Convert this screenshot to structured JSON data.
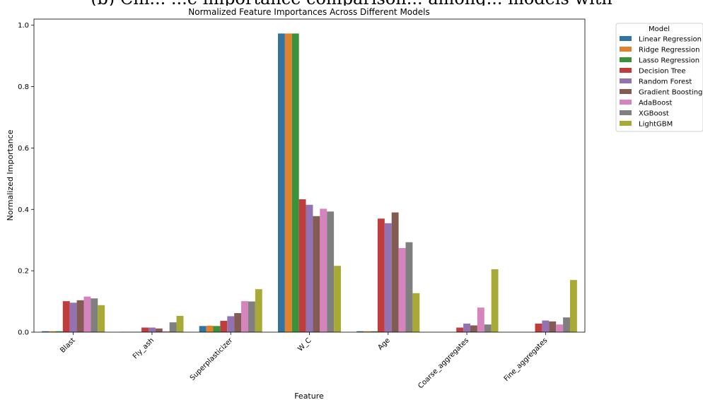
{
  "page_header": "(b) Chi...             ...e importance comparison... among... models with",
  "chart_data": {
    "type": "bar",
    "title": "Normalized Feature Importances Across Different Models",
    "xlabel": "Feature",
    "ylabel": "Normalized Importance",
    "ylim": [
      0,
      1.02
    ],
    "yticks": [
      "0.0",
      "0.2",
      "0.4",
      "0.6",
      "0.8",
      "1.0"
    ],
    "categories": [
      "Blast",
      "Fly_ash",
      "Superplasticizer",
      "W_C",
      "Age",
      "Coarse_aggregates",
      "Fine_aggregates"
    ],
    "legend_title": "Model",
    "legend_position": "outside-top-right",
    "grid": false,
    "series": [
      {
        "name": "Linear Regression",
        "color": "#3274a1",
        "values": [
          0.003,
          0.001,
          0.02,
          0.973,
          0.003,
          0.0,
          0.0
        ]
      },
      {
        "name": "Ridge Regression",
        "color": "#e1812c",
        "values": [
          0.003,
          0.001,
          0.021,
          0.973,
          0.003,
          0.0,
          0.0
        ]
      },
      {
        "name": "Lasso Regression",
        "color": "#3a923a",
        "values": [
          0.003,
          0.001,
          0.02,
          0.973,
          0.003,
          0.0,
          0.0
        ]
      },
      {
        "name": "Decision Tree",
        "color": "#c03d3e",
        "values": [
          0.101,
          0.015,
          0.037,
          0.433,
          0.37,
          0.015,
          0.028
        ]
      },
      {
        "name": "Random Forest",
        "color": "#9372b2",
        "values": [
          0.096,
          0.015,
          0.052,
          0.415,
          0.355,
          0.028,
          0.038
        ]
      },
      {
        "name": "Gradient Boosting",
        "color": "#845b53",
        "values": [
          0.104,
          0.012,
          0.062,
          0.378,
          0.39,
          0.022,
          0.035
        ]
      },
      {
        "name": "AdaBoost",
        "color": "#d684bd",
        "values": [
          0.116,
          0.003,
          0.101,
          0.402,
          0.274,
          0.08,
          0.025
        ]
      },
      {
        "name": "XGBoost",
        "color": "#7f7f7f",
        "values": [
          0.11,
          0.032,
          0.1,
          0.393,
          0.293,
          0.025,
          0.048
        ]
      },
      {
        "name": "LightGBM",
        "color": "#a9aa35",
        "values": [
          0.088,
          0.053,
          0.14,
          0.216,
          0.127,
          0.205,
          0.17
        ]
      }
    ]
  }
}
